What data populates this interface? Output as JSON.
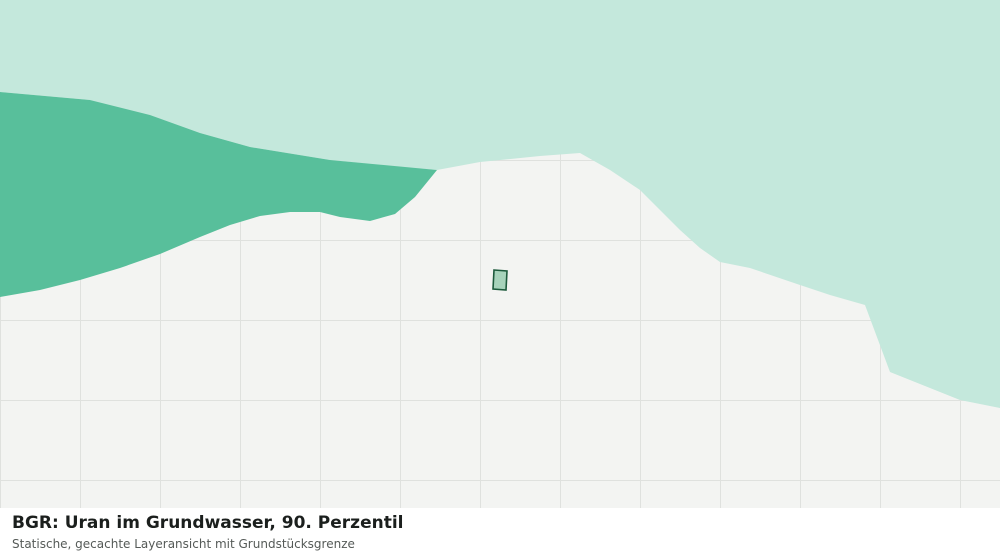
{
  "title": "BGR: Uran im Grundwasser, 90. Perzentil",
  "subtitle": "Statische, gecachte Layeransicht mit Grundstücksgrenze"
}
